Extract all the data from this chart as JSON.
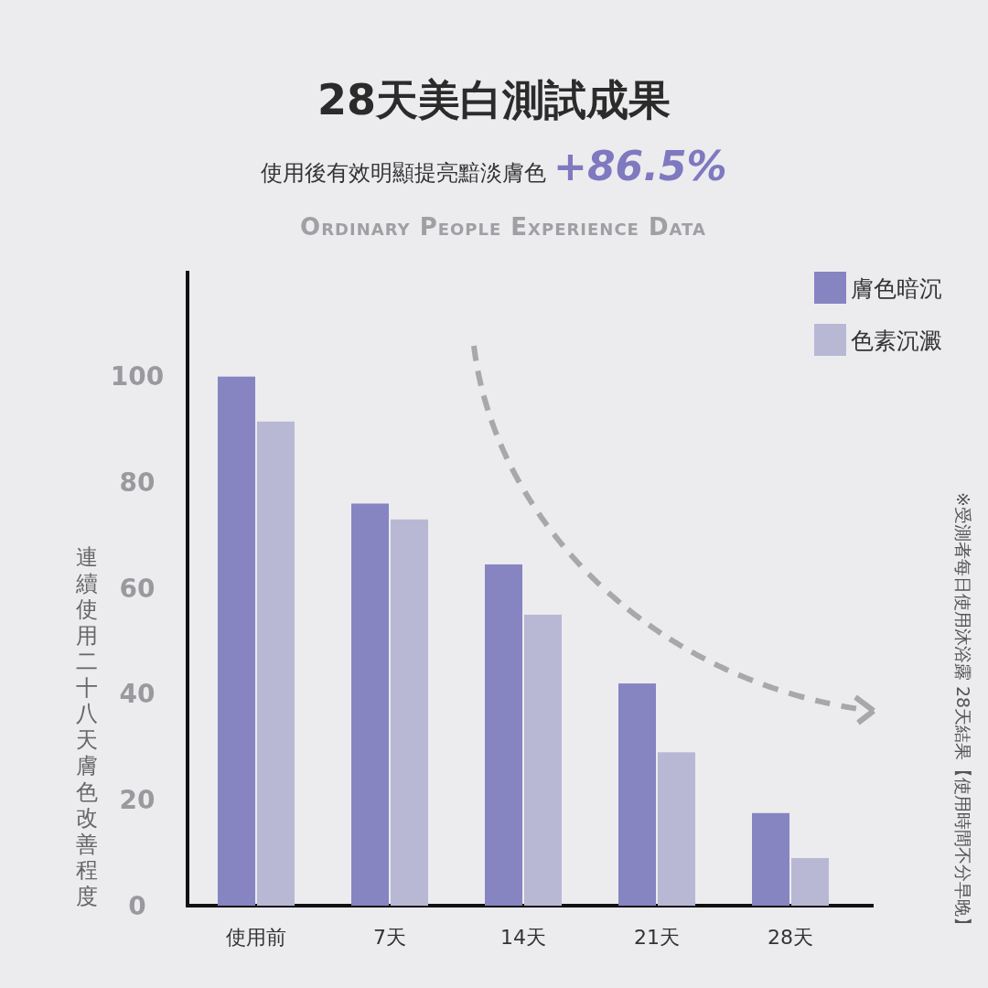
{
  "chart_data": {
    "type": "bar",
    "title": "28天美白測試成果",
    "subtitle": "使用後有效明顯提亮黯淡膚色 +86.5%",
    "annotations": [
      "Ordinary People Experience Data",
      "※受測者每日使用沐浴露 28天結果【使用時間不分早晚】"
    ],
    "ylabel": "連續使用二十八天膚色改善程度",
    "categories": [
      "使用前",
      "7天",
      "14天",
      "21天",
      "28天"
    ],
    "series": [
      {
        "name": "膚色暗沉",
        "color": "#8784c2",
        "values": [
          100,
          76,
          64.5,
          42,
          17.5
        ]
      },
      {
        "name": "色素沉澱",
        "color": "#b8b8d5",
        "values": [
          91.5,
          73,
          55,
          29,
          9
        ]
      }
    ],
    "ylim": [
      0,
      120
    ],
    "yticks": [
      0,
      20,
      40,
      60,
      80,
      100
    ],
    "legend": "top right",
    "grid": false
  }
}
